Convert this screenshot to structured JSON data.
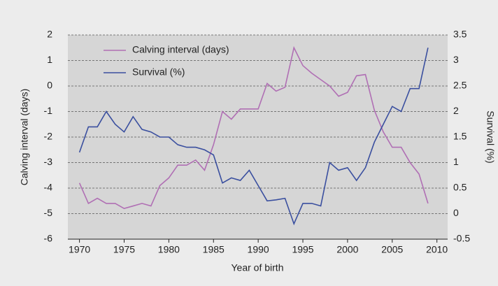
{
  "chart_data": {
    "type": "line",
    "x_label": "Year of birth",
    "y_label": "Calving interval (days)",
    "y2_label": "Survival (%)",
    "x": [
      1970,
      1971,
      1972,
      1973,
      1974,
      1975,
      1976,
      1977,
      1978,
      1979,
      1980,
      1981,
      1982,
      1983,
      1984,
      1985,
      1986,
      1987,
      1988,
      1989,
      1990,
      1991,
      1992,
      1993,
      1994,
      1995,
      1996,
      1997,
      1998,
      1999,
      2000,
      2001,
      2002,
      2003,
      2004,
      2005,
      2006,
      2007,
      2008,
      2009
    ],
    "series": [
      {
        "name": "Calving interval (days)",
        "color": "#b06fb4",
        "values": [
          -3.8,
          -4.6,
          -4.4,
          -4.6,
          -4.6,
          -4.8,
          -4.7,
          -4.6,
          -4.7,
          -3.9,
          -3.6,
          -3.1,
          -3.1,
          -2.9,
          -3.3,
          -2.3,
          -1.0,
          -1.3,
          -0.9,
          -0.9,
          -0.9,
          0.1,
          -0.2,
          -0.05,
          1.5,
          0.8,
          0.5,
          0.25,
          0,
          -0.4,
          -0.25,
          0.4,
          0.45,
          -0.95,
          -1.8,
          -2.4,
          -2.4,
          -3.0,
          -3.45,
          -4.6
        ]
      },
      {
        "name": "Survival (%)",
        "color": "#3a4f9f",
        "axis": "y2",
        "values": [
          1.2,
          1.7,
          1.7,
          2.0,
          1.75,
          1.6,
          1.9,
          1.65,
          1.6,
          1.5,
          1.5,
          1.35,
          1.3,
          1.3,
          1.25,
          1.15,
          0.6,
          0.7,
          0.65,
          0.85,
          0.55,
          0.25,
          0.27,
          0.3,
          -0.2,
          0.2,
          0.2,
          0.15,
          1.0,
          0.85,
          0.9,
          0.65,
          0.9,
          1.4,
          1.75,
          2.1,
          2.0,
          2.45,
          2.45,
          3.25
        ]
      }
    ],
    "xlim": [
      1968.7,
      2011.2
    ],
    "xticks": [
      1970,
      1975,
      1980,
      1985,
      1990,
      1995,
      2000,
      2005,
      2010
    ],
    "ylim": [
      -6,
      2
    ],
    "yticks": [
      -6,
      -5,
      -4,
      -3,
      -2,
      -1,
      0,
      1,
      2
    ],
    "y2lim": [
      -0.5,
      3.5
    ],
    "y2ticks": [
      -0.5,
      0,
      0.5,
      1,
      1.5,
      2,
      2.5,
      3,
      3.5
    ],
    "grid": true,
    "legend": "top-left"
  }
}
